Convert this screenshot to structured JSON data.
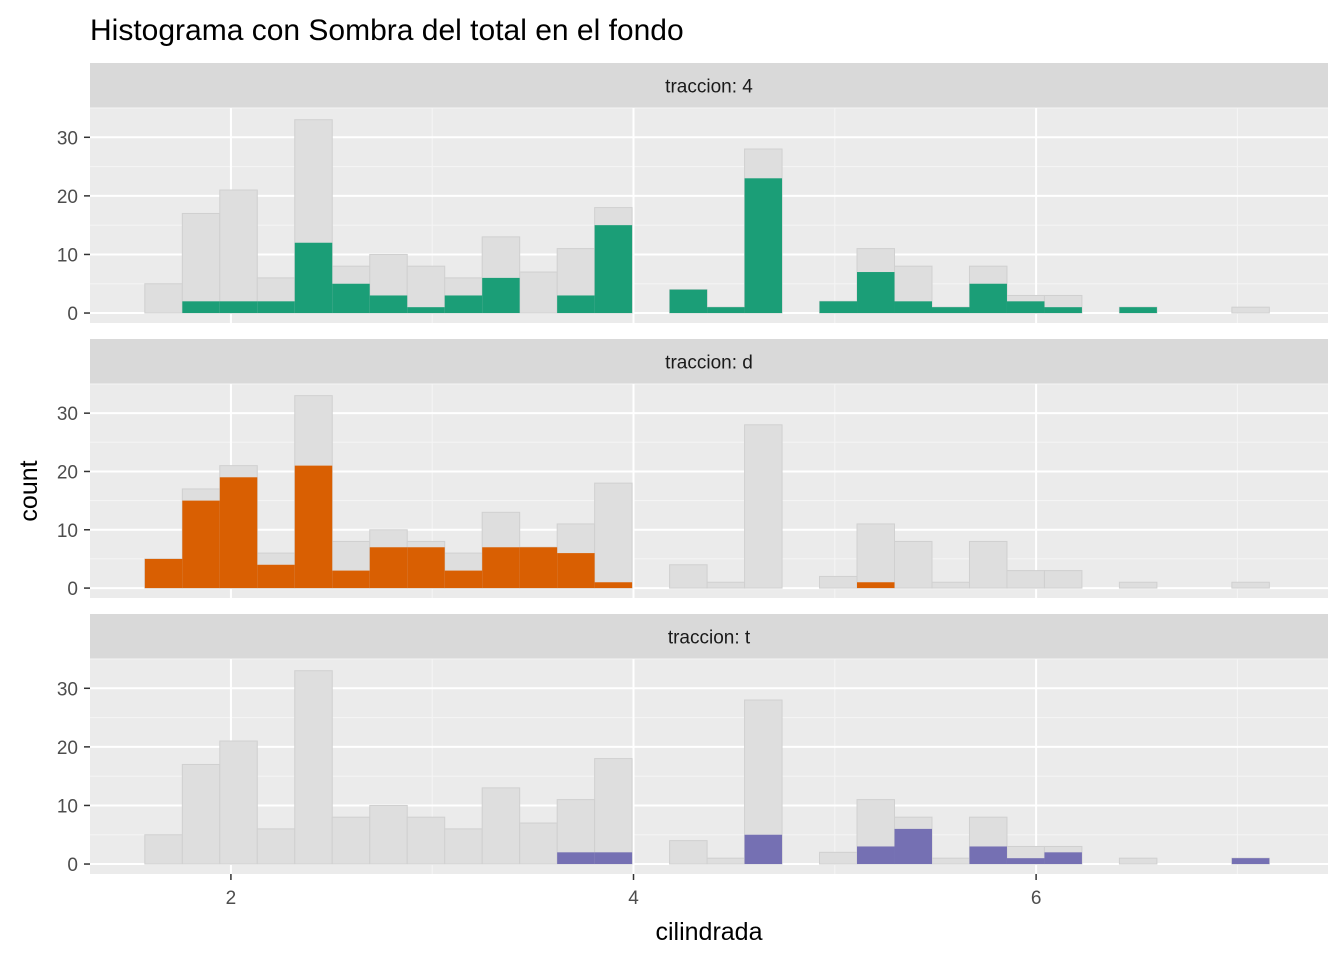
{
  "chart_data": {
    "type": "histogram",
    "title": "Histograma con Sombra del total en el fondo",
    "xlabel": "cilindrada",
    "ylabel": "count",
    "xlim": [
      1.3,
      7.45
    ],
    "ylim": [
      -1.7,
      35
    ],
    "x_ticks": [
      2,
      4,
      6
    ],
    "y_ticks": [
      0,
      10,
      20,
      30
    ],
    "bin_width": 0.1862,
    "bin_starts": [
      1.5724,
      1.7586,
      1.9448,
      2.131,
      2.3172,
      2.5034,
      2.6897,
      2.8759,
      3.0621,
      3.2483,
      3.4345,
      3.6207,
      3.8069,
      3.9931,
      4.1793,
      4.3655,
      4.5517,
      4.7379,
      4.9241,
      5.1103,
      5.2966,
      5.4828,
      5.669,
      5.8552,
      6.0414,
      6.2276,
      6.4138,
      6.6,
      6.7862,
      6.9724
    ],
    "background": {
      "name": "total",
      "color": "#dedede",
      "values": [
        5,
        17,
        21,
        6,
        33,
        8,
        10,
        8,
        6,
        13,
        7,
        11,
        18,
        0,
        4,
        1,
        28,
        0,
        2,
        11,
        8,
        1,
        8,
        3,
        3,
        0,
        1,
        0,
        0,
        1
      ]
    },
    "panels": [
      {
        "strip": "traccion: 4",
        "color": "#1b9e77",
        "values": [
          0,
          2,
          2,
          2,
          12,
          5,
          3,
          1,
          3,
          6,
          0,
          3,
          15,
          0,
          4,
          1,
          23,
          0,
          2,
          7,
          2,
          1,
          5,
          2,
          1,
          0,
          1,
          0,
          0,
          0
        ]
      },
      {
        "strip": "traccion: d",
        "color": "#d95f02",
        "values": [
          5,
          15,
          19,
          4,
          21,
          3,
          7,
          7,
          3,
          7,
          7,
          6,
          1,
          0,
          0,
          0,
          0,
          0,
          0,
          1,
          0,
          0,
          0,
          0,
          0,
          0,
          0,
          0,
          0,
          0
        ]
      },
      {
        "strip": "traccion: t",
        "color": "#7570b3",
        "values": [
          0,
          0,
          0,
          0,
          0,
          0,
          0,
          0,
          0,
          0,
          0,
          2,
          2,
          0,
          0,
          0,
          5,
          0,
          0,
          3,
          6,
          0,
          3,
          1,
          2,
          0,
          0,
          0,
          0,
          1
        ]
      }
    ]
  }
}
